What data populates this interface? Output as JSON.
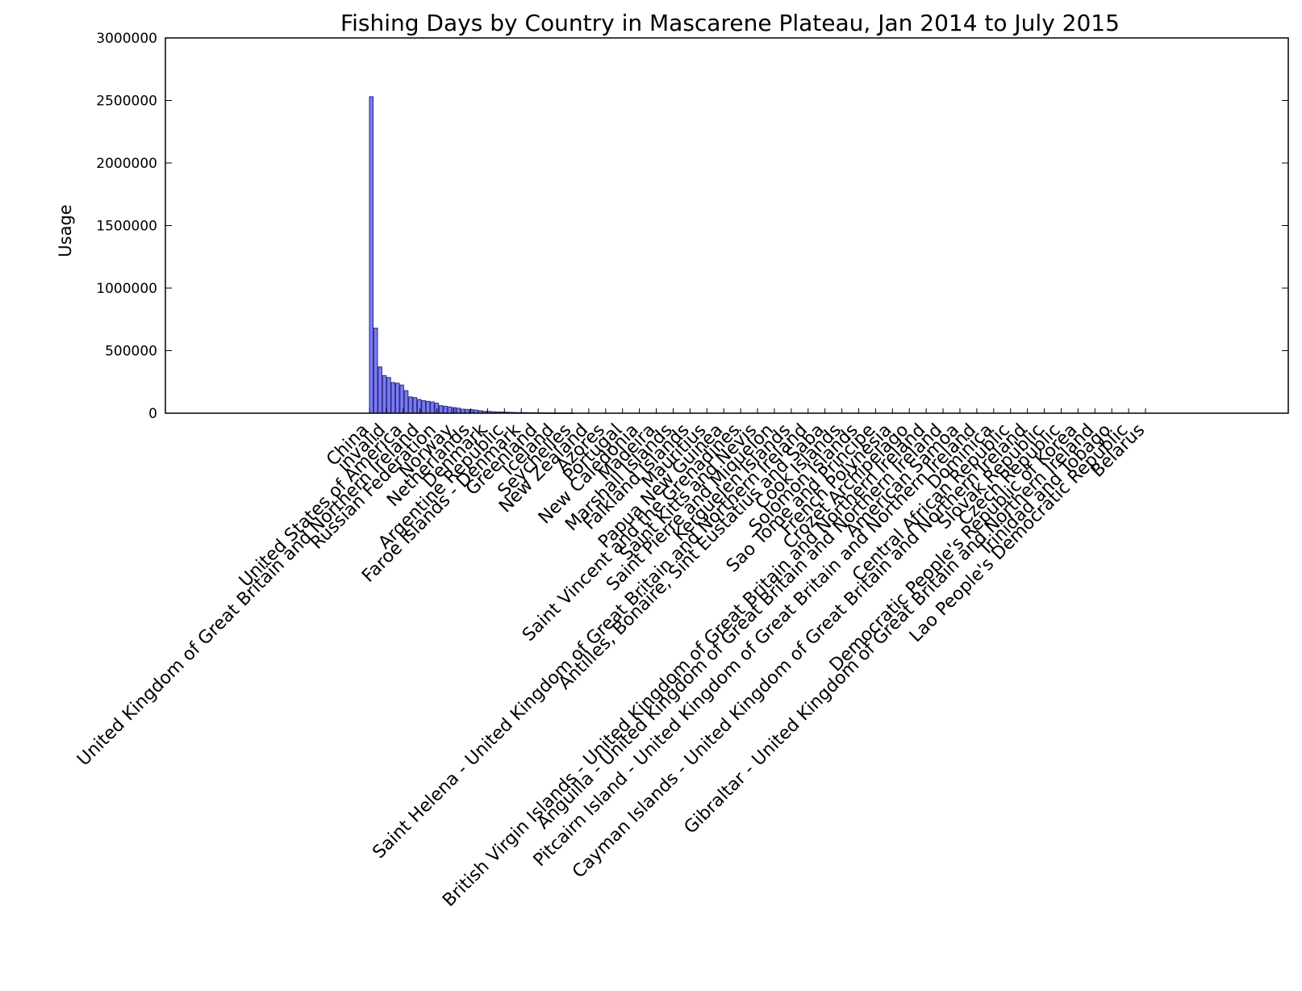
{
  "chart_data": {
    "type": "bar",
    "title": "Fishing Days by Country in Mascarene Plateau, Jan 2014 to July 2015",
    "xlabel": "",
    "ylabel": "Usage",
    "ylim": [
      0,
      3000000
    ],
    "yticks": [
      0,
      500000,
      1000000,
      1500000,
      2000000,
      2500000,
      3000000
    ],
    "grid": false,
    "legend": "none",
    "bar_color": "#7b7bf0",
    "bar_edge_color": "#2a2a8a",
    "categories": [
      "China",
      "invalid",
      "United States of America",
      "United Kingdom of Great Britain and Northern Ireland",
      "Russian Federation",
      "Norway",
      "Netherlands",
      "Denmark",
      "Argentine Republic",
      "Faroe Islands - Denmark",
      "Greenland",
      "Iceland",
      "Seychelles",
      "New Zealand",
      "Azores",
      "Portugal",
      "New Caledonia",
      "Madeira",
      "Marshall Islands",
      "Falkland Islands",
      "Mauritius",
      "Papua New Guinea",
      "Saint Vincent and the Grenadines",
      "Saint Kitts and Nevis",
      "Saint Pierre and Miquelon",
      "Kerguelen Islands",
      "Saint Helena - United Kingdom of Great Britain and Northern Ireland",
      "Antilles, Bonaire, Sint Eustatius and Saba",
      "Cook Islands",
      "Solomon Islands",
      "Sao Tome and Principe",
      "French Polynesia",
      "Crozet Archipelago",
      "British Virgin Islands - United Kingdom of Great Britain and Northern Ireland",
      "Anguilla - United Kingdom of Great Britain and Northern Ireland",
      "American Samoa",
      "Pitcairn Island - United Kingdom of Great Britain and Northern Ireland",
      "Dominica",
      "Central African Republic",
      "Cayman Islands - United Kingdom of Great Britain and Northern Ireland",
      "Slovak Republic",
      "Czech Republic",
      "Democratic People's Republic of Korea",
      "Gibraltar - United Kingdom of Great Britain and Northern Ireland",
      "Trinidad and Tobago",
      "Lao People's Democratic Republic",
      "Belarus"
    ],
    "values": [
      2530000,
      680000,
      370000,
      300000,
      285000,
      245000,
      240000,
      225000,
      180000,
      130000,
      125000,
      110000,
      100000,
      95000,
      90000,
      80000,
      60000,
      55000,
      50000,
      45000,
      40000,
      32000,
      30000,
      28000,
      25000,
      20000,
      15000,
      14000,
      12000,
      10000,
      9000,
      8000,
      7000,
      6000,
      5000,
      4500,
      4000,
      3500,
      3000,
      2500,
      2000,
      1500,
      1200,
      1000,
      800,
      600,
      400
    ]
  }
}
